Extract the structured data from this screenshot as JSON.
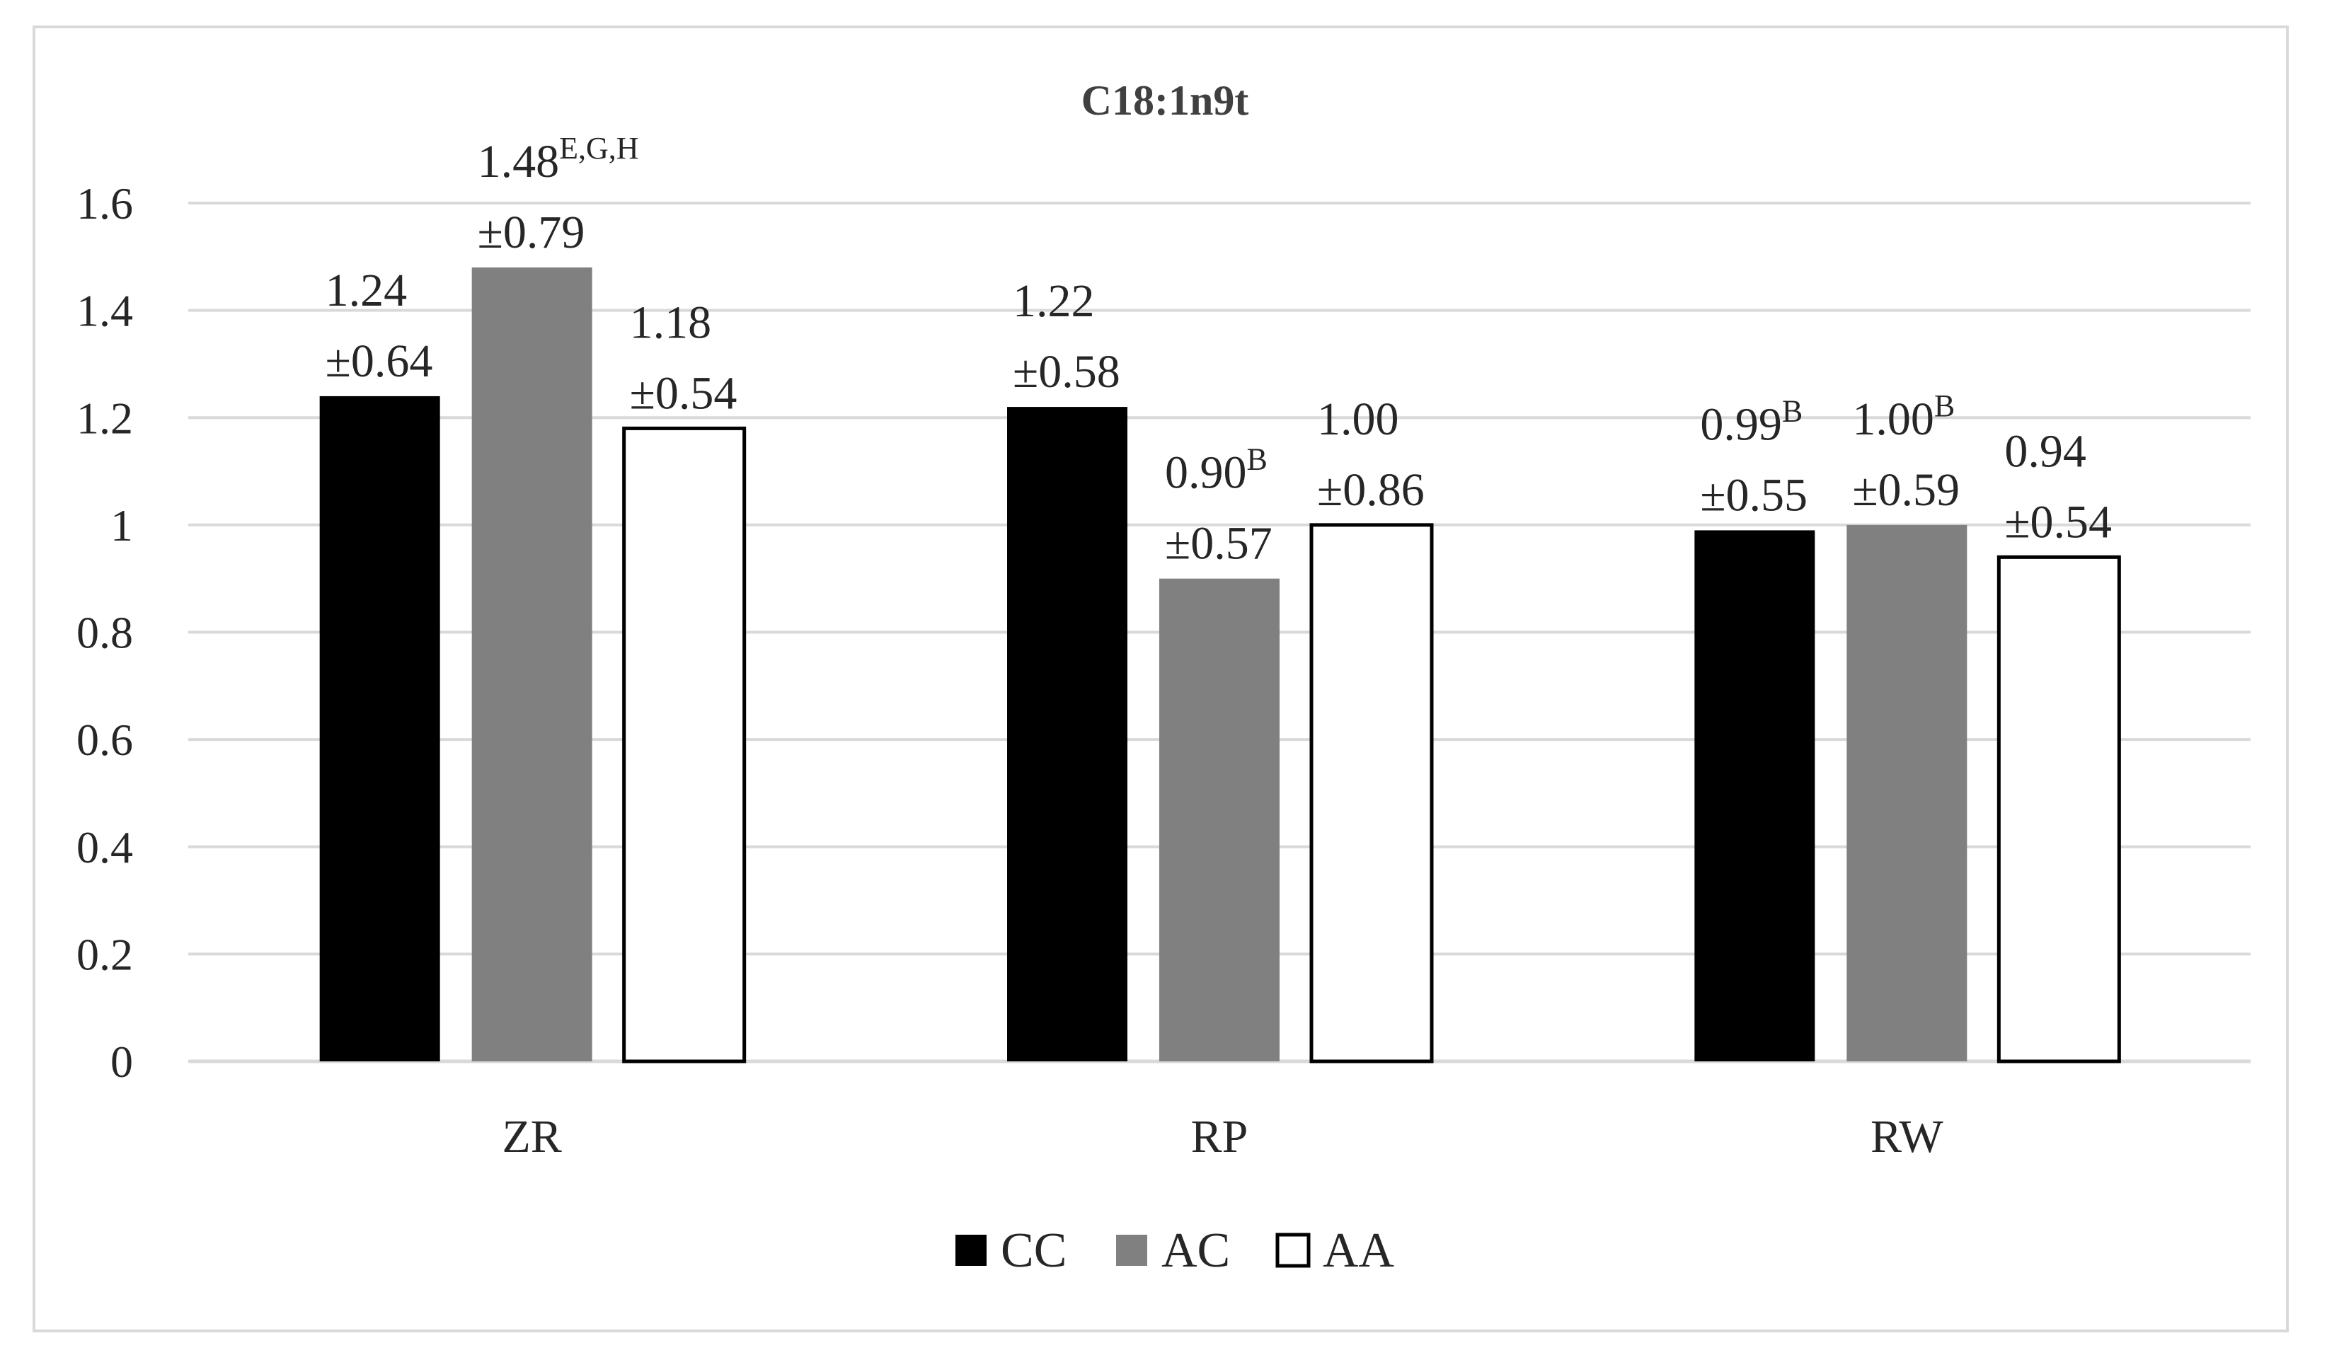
{
  "chart_data": {
    "type": "bar",
    "title": "C18:1n9t",
    "categories": [
      "ZR",
      "RP",
      "RW"
    ],
    "ylim": [
      0,
      1.6
    ],
    "yticks": [
      "0",
      "0.2",
      "0.4",
      "0.6",
      "0.8",
      "1",
      "1.2",
      "1.4",
      "1.6"
    ],
    "ytick_values": [
      0,
      0.2,
      0.4,
      0.6,
      0.8,
      1.0,
      1.2,
      1.4,
      1.6
    ],
    "grid": true,
    "legend_position": "bottom",
    "series": [
      {
        "name": "CC",
        "color": "#000000",
        "values": [
          1.24,
          1.22,
          0.99
        ],
        "labels": [
          "1.24",
          "1.22",
          "0.99"
        ],
        "sups": [
          "",
          "",
          "B"
        ],
        "sd": [
          "±0.64",
          "±0.58",
          "±0.55"
        ]
      },
      {
        "name": "AC",
        "color": "#808080",
        "values": [
          1.48,
          0.9,
          1.0
        ],
        "labels": [
          "1.48",
          "0.90",
          "1.00"
        ],
        "sups": [
          "E,G,H",
          "B",
          "B"
        ],
        "sd": [
          "±0.79",
          "±0.57",
          "±0.59"
        ]
      },
      {
        "name": "AA",
        "color": "#ffffff",
        "values": [
          1.18,
          1.0,
          0.94
        ],
        "labels": [
          "1.18",
          "1.00",
          "0.94"
        ],
        "sups": [
          "",
          "",
          ""
        ],
        "sd": [
          "±0.54",
          "±0.86",
          "±0.54"
        ]
      }
    ]
  }
}
